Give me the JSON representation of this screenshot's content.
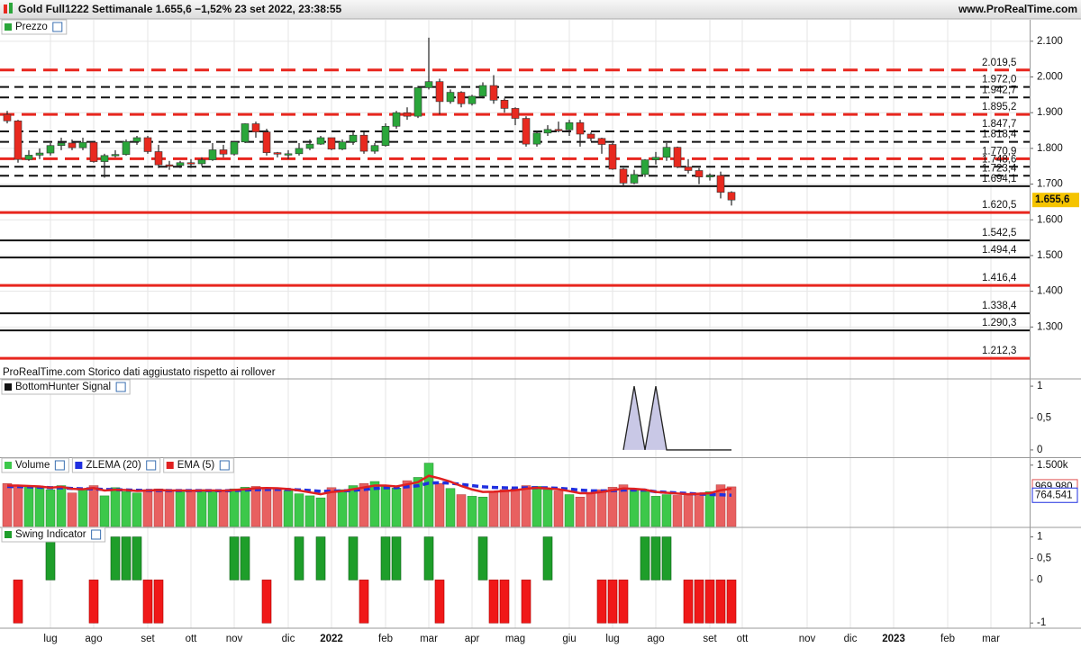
{
  "header": {
    "title": "Gold Full1222 Settimanale 1.655,6 −1,52% 23 set 2022, 23:38:55",
    "site": "www.ProRealTime.com"
  },
  "chart_data": [
    {
      "type": "candlestick",
      "title": "Prezzo",
      "note": "ProRealTime.com Storico dati aggiustato rispetto ai rollover",
      "up_color": "#2aa63a",
      "down_color": "#e8291f",
      "open": [
        1895,
        1877,
        1769,
        1781,
        1787,
        1808,
        1815,
        1802,
        1817,
        1763,
        1780,
        1783,
        1819,
        1830,
        1791,
        1754,
        1752,
        1760,
        1757,
        1768,
        1796,
        1784,
        1818,
        1869,
        1846,
        1788,
        1784,
        1785,
        1800,
        1812,
        1830,
        1798,
        1818,
        1837,
        1792,
        1808,
        1862,
        1900,
        1890,
        1970,
        1987,
        1931,
        1957,
        1925,
        1946,
        1976,
        1935,
        1912,
        1884,
        1812,
        1843,
        1853,
        1852,
        1872,
        1840,
        1828,
        1811,
        1742,
        1703,
        1727,
        1768,
        1775,
        1803,
        1748,
        1738,
        1720,
        1724,
        1677
      ],
      "high": [
        1905,
        1880,
        1795,
        1800,
        1815,
        1830,
        1825,
        1830,
        1820,
        1785,
        1795,
        1825,
        1835,
        1835,
        1810,
        1765,
        1765,
        1770,
        1775,
        1815,
        1810,
        1820,
        1870,
        1875,
        1855,
        1790,
        1795,
        1815,
        1825,
        1835,
        1830,
        1825,
        1845,
        1845,
        1815,
        1870,
        1905,
        1915,
        1975,
        2110,
        1995,
        1965,
        1960,
        1950,
        1985,
        2005,
        1940,
        1915,
        1890,
        1850,
        1865,
        1875,
        1880,
        1880,
        1845,
        1830,
        1815,
        1745,
        1740,
        1770,
        1790,
        1815,
        1805,
        1770,
        1745,
        1730,
        1735,
        1680
      ],
      "low": [
        1870,
        1760,
        1765,
        1770,
        1780,
        1795,
        1795,
        1795,
        1760,
        1718,
        1775,
        1780,
        1810,
        1785,
        1745,
        1740,
        1745,
        1745,
        1750,
        1765,
        1775,
        1780,
        1815,
        1830,
        1780,
        1775,
        1770,
        1780,
        1795,
        1810,
        1795,
        1795,
        1810,
        1785,
        1785,
        1805,
        1855,
        1880,
        1885,
        1965,
        1895,
        1925,
        1915,
        1920,
        1940,
        1925,
        1900,
        1865,
        1805,
        1805,
        1835,
        1845,
        1835,
        1805,
        1820,
        1785,
        1740,
        1695,
        1700,
        1720,
        1755,
        1765,
        1745,
        1730,
        1700,
        1710,
        1660,
        1640
      ],
      "close": [
        1877,
        1769,
        1781,
        1787,
        1808,
        1815,
        1802,
        1817,
        1763,
        1780,
        1783,
        1819,
        1830,
        1791,
        1754,
        1752,
        1760,
        1757,
        1768,
        1796,
        1784,
        1818,
        1869,
        1846,
        1788,
        1784,
        1785,
        1800,
        1812,
        1830,
        1798,
        1818,
        1837,
        1792,
        1808,
        1862,
        1900,
        1890,
        1970,
        1987,
        1931,
        1957,
        1925,
        1946,
        1976,
        1935,
        1912,
        1884,
        1812,
        1843,
        1853,
        1852,
        1872,
        1840,
        1828,
        1811,
        1742,
        1703,
        1727,
        1768,
        1775,
        1803,
        1748,
        1738,
        1720,
        1724,
        1677,
        1655.6
      ],
      "last_price": {
        "value": 1655.6,
        "label": "1.655,6"
      },
      "ylim": [
        1195,
        2160
      ],
      "yticks": [
        {
          "value": 2100,
          "label": "2.100"
        },
        {
          "value": 2000,
          "label": "2.000"
        },
        {
          "value": 1900,
          "label": "1.900"
        },
        {
          "value": 1800,
          "label": "1.800"
        },
        {
          "value": 1700,
          "label": "1.700"
        },
        {
          "value": 1600,
          "label": "1.600"
        },
        {
          "value": 1500,
          "label": "1.500"
        },
        {
          "value": 1400,
          "label": "1.400"
        },
        {
          "value": 1300,
          "label": "1.300"
        }
      ],
      "grid": true,
      "levels": [
        {
          "value": 2019.5,
          "label": "2.019,5",
          "color": "#e8261e",
          "dashed": true
        },
        {
          "value": 1972.0,
          "label": "1.972,0",
          "color": "#111111",
          "dashed": true
        },
        {
          "value": 1942.7,
          "label": "1.942,7",
          "color": "#111111",
          "dashed": true
        },
        {
          "value": 1895.2,
          "label": "1.895,2",
          "color": "#e8261e",
          "dashed": true
        },
        {
          "value": 1847.7,
          "label": "1.847,7",
          "color": "#111111",
          "dashed": true
        },
        {
          "value": 1818.4,
          "label": "1.818,4",
          "color": "#111111",
          "dashed": true
        },
        {
          "value": 1770.9,
          "label": "1.770,9",
          "color": "#e8261e",
          "dashed": true
        },
        {
          "value": 1748.6,
          "label": "1.748,6",
          "color": "#111111",
          "dashed": true
        },
        {
          "value": 1723.4,
          "label": "1.723,4",
          "color": "#111111",
          "dashed": true
        },
        {
          "value": 1694.1,
          "label": "1.694,1",
          "color": "#111111",
          "dashed": false
        },
        {
          "value": 1620.5,
          "label": "1.620,5",
          "color": "#e8261e",
          "dashed": false
        },
        {
          "value": 1542.5,
          "label": "1.542,5",
          "color": "#111111",
          "dashed": false
        },
        {
          "value": 1494.4,
          "label": "1.494,4",
          "color": "#111111",
          "dashed": false
        },
        {
          "value": 1416.4,
          "label": "1.416,4",
          "color": "#e8261e",
          "dashed": false
        },
        {
          "value": 1338.4,
          "label": "1.338,4",
          "color": "#111111",
          "dashed": false
        },
        {
          "value": 1290.3,
          "label": "1.290,3",
          "color": "#111111",
          "dashed": false
        },
        {
          "value": 1212.3,
          "label": "1.212,3",
          "color": "#e8261e",
          "dashed": false
        }
      ]
    },
    {
      "type": "area",
      "title": "BottomHunter Signal",
      "color": "#c9c8e6",
      "values": [
        null,
        null,
        null,
        null,
        null,
        null,
        null,
        null,
        null,
        null,
        null,
        null,
        null,
        null,
        null,
        null,
        null,
        null,
        null,
        null,
        null,
        null,
        null,
        null,
        null,
        null,
        null,
        null,
        null,
        null,
        null,
        null,
        null,
        null,
        null,
        null,
        null,
        null,
        null,
        null,
        null,
        null,
        null,
        null,
        null,
        null,
        null,
        null,
        null,
        null,
        null,
        null,
        null,
        null,
        null,
        null,
        null,
        0,
        1,
        0,
        1,
        0,
        0,
        0,
        0,
        0,
        0,
        0
      ],
      "ylim": [
        -0.1,
        1.1
      ],
      "yticks": [
        1,
        {
          "value": 0.5,
          "label": "0,5"
        },
        0
      ]
    },
    {
      "type": "bar",
      "up_color": "#3cc84a",
      "down_color": "#e86060",
      "series": [
        {
          "name": "Volume",
          "color": "#3cc84a",
          "values": [
            1050000,
            1000000,
            980000,
            950000,
            900000,
            1000000,
            820000,
            900000,
            1000000,
            750000,
            950000,
            850000,
            820000,
            900000,
            920000,
            850000,
            880000,
            870000,
            900000,
            880000,
            870000,
            920000,
            960000,
            980000,
            950000,
            930000,
            880000,
            800000,
            750000,
            700000,
            950000,
            900000,
            1000000,
            1050000,
            1100000,
            1000000,
            940000,
            1120000,
            1200000,
            1550000,
            1050000,
            930000,
            780000,
            740000,
            720000,
            860000,
            900000,
            920000,
            1000000,
            980000,
            900000,
            870000,
            780000,
            720000,
            810000,
            900000,
            960000,
            1020000,
            900000,
            860000,
            740000,
            780000,
            760000,
            760000,
            820000,
            850000,
            1020000,
            969980
          ],
          "value_labels": [
            null,
            null,
            null,
            null,
            null,
            null,
            null,
            null,
            null,
            null,
            null,
            null,
            null,
            null,
            null,
            null,
            null,
            null,
            null,
            null,
            null,
            null,
            null,
            null,
            null,
            null,
            null,
            null,
            null,
            null,
            null,
            null,
            null,
            null,
            null,
            null,
            null,
            null,
            null,
            null,
            null,
            null,
            null,
            null,
            null,
            null,
            null,
            null,
            null,
            null,
            null,
            null,
            null,
            null,
            null,
            null,
            null,
            null,
            null,
            null,
            null,
            null,
            null,
            null,
            null,
            null,
            null,
            "969.980"
          ]
        },
        {
          "name": "ZLEMA (20)",
          "color": "#1f2fe0",
          "values": [
            980000,
            975000,
            970000,
            960000,
            950000,
            945000,
            930000,
            920000,
            920000,
            905000,
            900000,
            895000,
            885000,
            880000,
            880000,
            878000,
            877000,
            876000,
            876000,
            876000,
            875000,
            880000,
            890000,
            900000,
            905000,
            908000,
            905000,
            895000,
            880000,
            860000,
            865000,
            870000,
            885000,
            905000,
            930000,
            945000,
            950000,
            970000,
            995000,
            1060000,
            1070000,
            1060000,
            1030000,
            1000000,
            970000,
            955000,
            945000,
            940000,
            945000,
            948000,
            945000,
            935000,
            915000,
            890000,
            875000,
            870000,
            875000,
            890000,
            893000,
            890000,
            850000,
            835000,
            820000,
            808000,
            795000,
            785000,
            775000,
            764541
          ],
          "value_labels": [
            null,
            null,
            null,
            null,
            null,
            null,
            null,
            null,
            null,
            null,
            null,
            null,
            null,
            null,
            null,
            null,
            null,
            null,
            null,
            null,
            null,
            null,
            null,
            null,
            null,
            null,
            null,
            null,
            null,
            null,
            null,
            null,
            null,
            null,
            null,
            null,
            null,
            null,
            null,
            null,
            null,
            null,
            null,
            null,
            null,
            null,
            null,
            null,
            null,
            null,
            null,
            null,
            null,
            null,
            null,
            null,
            null,
            null,
            null,
            null,
            null,
            null,
            null,
            null,
            null,
            null,
            null,
            "764.541"
          ]
        },
        {
          "name": "EMA (5)",
          "color": "#e02020",
          "values": [
            1000000,
            1000000,
            990000,
            980000,
            950000,
            970000,
            920000,
            910000,
            940000,
            880000,
            900000,
            890000,
            870000,
            880000,
            890000,
            880000,
            880000,
            875000,
            880000,
            880000,
            875000,
            890000,
            910000,
            935000,
            940000,
            935000,
            915000,
            880000,
            835000,
            790000,
            845000,
            865000,
            910000,
            955000,
            1000000,
            1000000,
            980000,
            1030000,
            1085000,
            1240000,
            1175000,
            1095000,
            990000,
            905000,
            845000,
            850000,
            865000,
            885000,
            925000,
            945000,
            930000,
            910000,
            865000,
            815000,
            815000,
            845000,
            885000,
            930000,
            920000,
            900000,
            845000,
            825000,
            805000,
            790000,
            800000,
            815000,
            885000,
            925000
          ]
        }
      ],
      "ylim": [
        0,
        1650000
      ],
      "yticks": [
        {
          "value": 1500000,
          "label": "1.500k"
        }
      ]
    },
    {
      "type": "bar",
      "title": "Swing Indicator",
      "up_color": "#1e9e2a",
      "down_color": "#f01818",
      "categories": [
        null,
        null,
        null,
        null,
        "lug",
        null,
        null,
        null,
        "ago",
        null,
        null,
        null,
        null,
        "set",
        null,
        null,
        null,
        "ott",
        null,
        null,
        null,
        "nov",
        null,
        null,
        null,
        null,
        "dic",
        null,
        null,
        null,
        "2022",
        null,
        null,
        null,
        null,
        "feb",
        null,
        null,
        null,
        "mar",
        null,
        null,
        null,
        "apr",
        null,
        null,
        null,
        "mag",
        null,
        null,
        null,
        null,
        "giu",
        null,
        null,
        null,
        "lug",
        null,
        null,
        null,
        "ago",
        null,
        null,
        null,
        null,
        "set",
        null,
        null,
        "ott",
        null,
        null,
        null,
        null,
        null,
        "nov",
        null,
        null,
        null,
        "dic",
        null,
        null,
        null,
        "2023",
        null,
        null,
        null,
        null,
        "feb",
        null,
        null,
        null,
        "mar",
        null
      ],
      "values": [
        0,
        -1,
        0,
        0,
        1,
        0,
        0,
        0,
        -1,
        0,
        1,
        1,
        1,
        -1,
        -1,
        0,
        0,
        0,
        0,
        0,
        0,
        1,
        1,
        0,
        -1,
        0,
        0,
        1,
        0,
        1,
        0,
        0,
        1,
        -1,
        0,
        1,
        1,
        0,
        0,
        1,
        -1,
        0,
        0,
        0,
        1,
        -1,
        -1,
        0,
        -1,
        0,
        1,
        0,
        0,
        0,
        0,
        -1,
        -1,
        -1,
        0,
        1,
        1,
        1,
        0,
        -1,
        -1,
        -1,
        -1,
        -1,
        null,
        null,
        null,
        null,
        null,
        null,
        null,
        null,
        null,
        null,
        null,
        null,
        null,
        null,
        null,
        null,
        null,
        null,
        null,
        null,
        null,
        null,
        null,
        null,
        null
      ],
      "ylim": [
        -1.1,
        1.2
      ],
      "yticks": [
        1,
        {
          "value": 0.5,
          "label": "0,5"
        },
        0,
        -1
      ]
    }
  ]
}
